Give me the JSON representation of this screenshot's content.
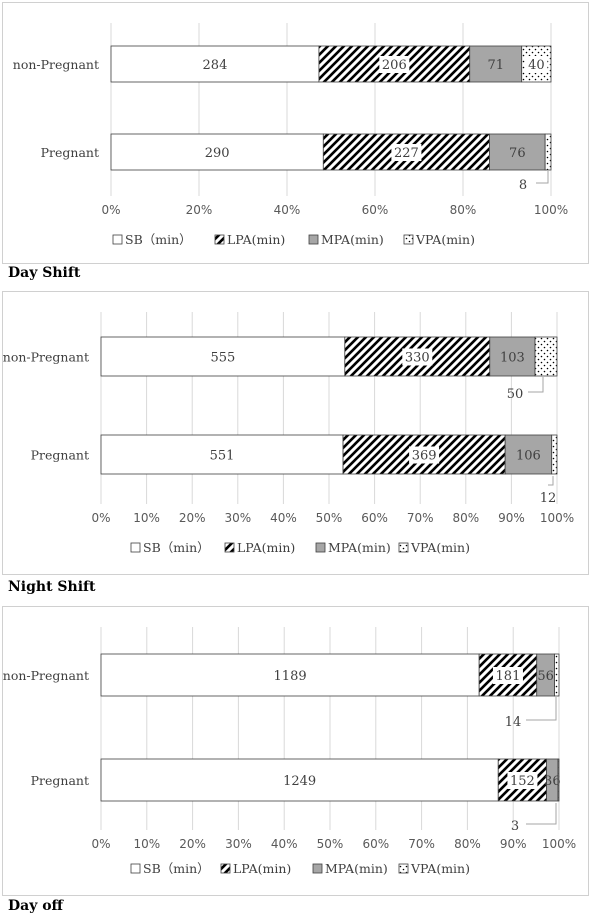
{
  "chart_data": [
    {
      "type": "bar",
      "stacked": "percent",
      "orientation": "horizontal",
      "title": "Day Shift",
      "categories": [
        "non-Pregnant",
        "Pregnant"
      ],
      "series": [
        {
          "name": "SB（min）",
          "values": [
            284,
            290
          ],
          "color": "#ffffff",
          "pattern": "none"
        },
        {
          "name": "LPA(min)",
          "values": [
            206,
            227
          ],
          "color": "#000000",
          "pattern": "diagonal-hatch"
        },
        {
          "name": "MPA(min)",
          "values": [
            71,
            76
          ],
          "color": "#a6a6a6",
          "pattern": "solid"
        },
        {
          "name": "VPA(min)",
          "values": [
            40,
            8
          ],
          "color": "#ffffff",
          "pattern": "dots"
        }
      ],
      "xlim": [
        0,
        100
      ],
      "xticks": [
        "0%",
        "20%",
        "40%",
        "60%",
        "80%",
        "100%"
      ],
      "grid": true,
      "legend_position": "bottom"
    },
    {
      "type": "bar",
      "stacked": "percent",
      "orientation": "horizontal",
      "title": "Night Shift",
      "categories": [
        "non-Pregnant",
        "Pregnant"
      ],
      "series": [
        {
          "name": "SB（min）",
          "values": [
            555,
            551
          ],
          "color": "#ffffff",
          "pattern": "none"
        },
        {
          "name": "LPA(min)",
          "values": [
            330,
            369
          ],
          "color": "#000000",
          "pattern": "diagonal-hatch"
        },
        {
          "name": "MPA(min)",
          "values": [
            103,
            106
          ],
          "color": "#a6a6a6",
          "pattern": "solid"
        },
        {
          "name": "VPA(min)",
          "values": [
            50,
            12
          ],
          "color": "#ffffff",
          "pattern": "dots"
        }
      ],
      "xlim": [
        0,
        100
      ],
      "xticks": [
        "0%",
        "10%",
        "20%",
        "30%",
        "40%",
        "50%",
        "60%",
        "70%",
        "80%",
        "90%",
        "100%"
      ],
      "grid": true,
      "legend_position": "bottom"
    },
    {
      "type": "bar",
      "stacked": "percent",
      "orientation": "horizontal",
      "title": "Day off",
      "categories": [
        "non-Pregnant",
        "Pregnant"
      ],
      "series": [
        {
          "name": "SB（min）",
          "values": [
            1189,
            1249
          ],
          "color": "#ffffff",
          "pattern": "none"
        },
        {
          "name": "LPA(min)",
          "values": [
            181,
            152
          ],
          "color": "#000000",
          "pattern": "diagonal-hatch"
        },
        {
          "name": "MPA(min)",
          "values": [
            56,
            36
          ],
          "color": "#a6a6a6",
          "pattern": "solid"
        },
        {
          "name": "VPA(min)",
          "values": [
            14,
            3
          ],
          "color": "#ffffff",
          "pattern": "dots"
        }
      ],
      "xlim": [
        0,
        100
      ],
      "xticks": [
        "0%",
        "10%",
        "20%",
        "30%",
        "40%",
        "50%",
        "60%",
        "70%",
        "80%",
        "90%",
        "100%"
      ],
      "grid": true,
      "legend_position": "bottom"
    }
  ]
}
